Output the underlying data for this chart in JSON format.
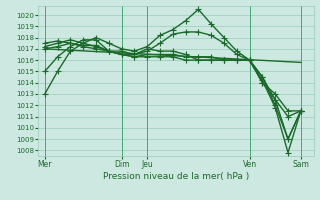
{
  "xlabel": "Pression niveau de la mer( hPa )",
  "ylim": [
    1007.5,
    1020.8
  ],
  "yticks": [
    1008,
    1009,
    1010,
    1011,
    1012,
    1013,
    1014,
    1015,
    1016,
    1017,
    1018,
    1019,
    1020
  ],
  "bg_color": "#cce8e0",
  "grid_color": "#99ccbb",
  "line_color": "#1a6b2a",
  "line_width": 1.0,
  "marker": "+",
  "marker_size": 4,
  "marker_edge_width": 0.8,
  "vline_color": "#44aa77",
  "vline_positions": [
    0,
    18,
    24,
    48,
    60
  ],
  "xtick_positions": [
    0,
    18,
    24,
    48,
    60
  ],
  "xtick_labels": [
    "Mer",
    "Dim",
    "Jeu",
    "Ven",
    "Sam"
  ],
  "xlim": [
    -1.5,
    63
  ],
  "trend_line": {
    "x": [
      0,
      60
    ],
    "y": [
      1017.0,
      1015.8
    ]
  },
  "series": [
    {
      "x": [
        0,
        3,
        6,
        9,
        12,
        15,
        18,
        21,
        24,
        27,
        30,
        33,
        36,
        39,
        42,
        45,
        48,
        51,
        54,
        57,
        60
      ],
      "y": [
        1013.0,
        1015.0,
        1016.8,
        1017.5,
        1018.0,
        1017.5,
        1017.0,
        1016.8,
        1017.2,
        1018.2,
        1018.7,
        1019.5,
        1020.5,
        1019.2,
        1018.0,
        1016.8,
        1016.0,
        1014.0,
        1013.0,
        1011.5,
        1011.5
      ]
    },
    {
      "x": [
        0,
        3,
        6,
        9,
        12,
        15,
        18,
        21,
        24,
        27,
        30,
        33,
        36,
        39,
        42,
        45,
        48,
        51,
        54,
        57,
        60
      ],
      "y": [
        1015.0,
        1016.3,
        1017.2,
        1017.8,
        1017.8,
        1016.8,
        1016.5,
        1016.5,
        1016.8,
        1017.5,
        1018.3,
        1018.5,
        1018.5,
        1018.2,
        1017.5,
        1016.5,
        1016.0,
        1014.0,
        1012.5,
        1009.0,
        1011.5
      ]
    },
    {
      "x": [
        0,
        3,
        6,
        9,
        12,
        15,
        18,
        21,
        24,
        27,
        30,
        33,
        36,
        39,
        42,
        45,
        48,
        51,
        54,
        57,
        60
      ],
      "y": [
        1017.0,
        1017.2,
        1017.5,
        1017.2,
        1017.0,
        1016.8,
        1016.5,
        1016.3,
        1016.5,
        1016.5,
        1016.5,
        1016.3,
        1016.3,
        1016.3,
        1016.0,
        1016.0,
        1016.0,
        1014.5,
        1012.5,
        1011.0,
        1011.5
      ]
    },
    {
      "x": [
        0,
        3,
        6,
        9,
        12,
        15,
        18,
        21,
        24,
        27,
        30,
        33,
        36,
        39,
        42,
        45,
        48,
        51,
        54,
        57,
        60
      ],
      "y": [
        1017.2,
        1017.5,
        1017.8,
        1017.5,
        1017.2,
        1016.8,
        1016.5,
        1016.3,
        1016.3,
        1016.3,
        1016.3,
        1016.0,
        1016.0,
        1016.0,
        1016.0,
        1016.0,
        1016.0,
        1014.2,
        1011.8,
        1007.8,
        1011.5
      ]
    },
    {
      "x": [
        0,
        3,
        6,
        9,
        12,
        15,
        18,
        21,
        24,
        27,
        30,
        33,
        36,
        39,
        42,
        45,
        48,
        51,
        54,
        57,
        60
      ],
      "y": [
        1017.5,
        1017.7,
        1017.5,
        1017.3,
        1017.3,
        1016.8,
        1016.8,
        1016.5,
        1017.0,
        1016.8,
        1016.8,
        1016.5,
        1016.0,
        1016.0,
        1016.0,
        1016.0,
        1016.0,
        1014.5,
        1012.0,
        1009.0,
        1011.5
      ]
    }
  ]
}
